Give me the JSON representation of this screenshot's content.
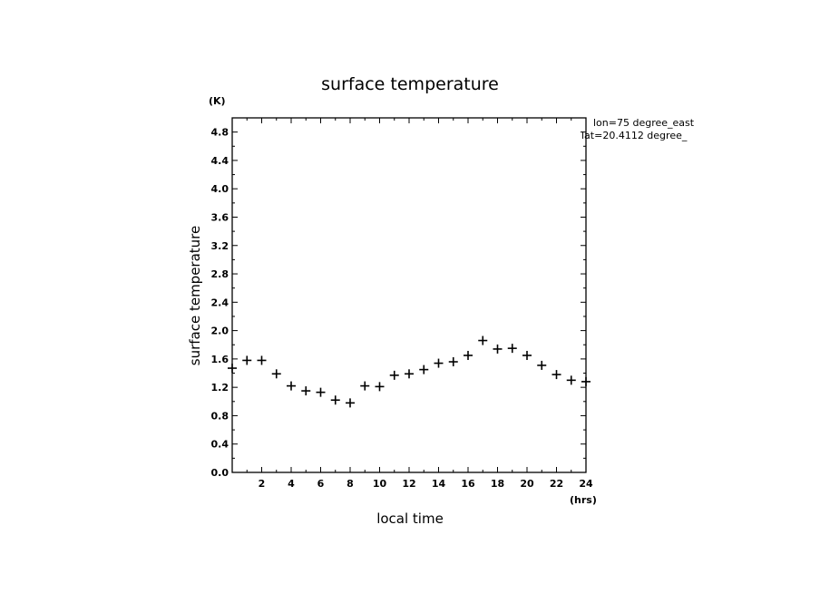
{
  "chart_data": {
    "type": "scatter",
    "title": "surface temperature",
    "xlabel": "local time",
    "ylabel": "surface temperature",
    "x_unit": "(hrs)",
    "y_unit": "(K)",
    "xlim": [
      0,
      24
    ],
    "ylim": [
      0,
      5
    ],
    "xticks": [
      2,
      4,
      6,
      8,
      10,
      12,
      14,
      16,
      18,
      20,
      22,
      24
    ],
    "xtick_labels": [
      "2",
      "4",
      "6",
      "8",
      "10",
      "12",
      "14",
      "16",
      "18",
      "20",
      "22",
      "24"
    ],
    "yticks": [
      0,
      0.4,
      0.8,
      1.2,
      1.6,
      2.0,
      2.4,
      2.8,
      3.2,
      3.6,
      4.0,
      4.4,
      4.8
    ],
    "ytick_labels": [
      "0.0",
      "0.4",
      "0.8",
      "1.2",
      "1.6",
      "2.0",
      "2.4",
      "2.8",
      "3.2",
      "3.6",
      "4.0",
      "4.4",
      "4.8"
    ],
    "marker": "plus",
    "grid": false,
    "annotations": [
      "lon=75 degree_east",
      "lat=20.4112 degree_"
    ],
    "series": [
      {
        "x": [
          0,
          1,
          2,
          3,
          4,
          5,
          6,
          7,
          8,
          9,
          10,
          11,
          12,
          13,
          14,
          15,
          16,
          17,
          18,
          19,
          20,
          21,
          22,
          23,
          24
        ],
        "values": [
          1.47,
          1.58,
          1.58,
          1.39,
          1.22,
          1.15,
          1.13,
          1.02,
          0.98,
          1.22,
          1.21,
          1.37,
          1.39,
          1.45,
          1.54,
          1.56,
          1.65,
          1.86,
          1.74,
          1.75,
          1.65,
          1.51,
          1.38,
          1.3,
          1.28
        ]
      }
    ]
  }
}
